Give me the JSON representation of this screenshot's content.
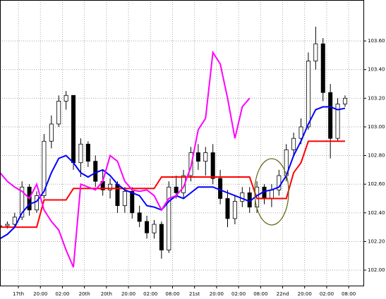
{
  "chart_data": {
    "type": "candlestick",
    "x": [
      0,
      2,
      4,
      6,
      8,
      10,
      12,
      14,
      16,
      18,
      20,
      22,
      24,
      26,
      28,
      30,
      32,
      34,
      36,
      38,
      40,
      42,
      44,
      46,
      48,
      50,
      52,
      54,
      56,
      58,
      60,
      62,
      64,
      66,
      68,
      70,
      72,
      74,
      76,
      78,
      80,
      82,
      84,
      86,
      88,
      90,
      92,
      94
    ],
    "open": [
      102.3,
      102.31,
      102.32,
      102.37,
      102.58,
      102.42,
      102.52,
      102.9,
      103.02,
      103.18,
      103.22,
      102.75,
      102.88,
      102.76,
      102.62,
      102.56,
      102.6,
      102.45,
      102.55,
      102.4,
      102.34,
      102.26,
      102.32,
      102.14,
      102.58,
      102.54,
      102.66,
      102.82,
      102.76,
      102.82,
      102.64,
      102.5,
      102.36,
      102.48,
      102.54,
      102.44,
      102.58,
      102.5,
      102.56,
      102.66,
      102.84,
      102.92,
      103.0,
      103.46,
      103.58,
      103.24,
      102.92,
      103.16
    ],
    "high": [
      102.33,
      102.34,
      102.4,
      102.62,
      102.6,
      102.55,
      102.95,
      103.08,
      103.22,
      103.25,
      103.22,
      102.92,
      102.9,
      102.8,
      102.7,
      102.64,
      102.62,
      102.58,
      102.58,
      102.45,
      102.38,
      102.35,
      102.34,
      102.62,
      102.66,
      102.7,
      102.86,
      102.88,
      102.86,
      102.88,
      102.7,
      102.56,
      102.52,
      102.58,
      102.58,
      102.62,
      102.6,
      102.6,
      102.7,
      102.88,
      102.96,
      103.06,
      103.52,
      103.7,
      103.62,
      103.3,
      103.2,
      103.22
    ],
    "low": [
      102.27,
      102.29,
      102.3,
      102.35,
      102.38,
      102.4,
      102.5,
      102.85,
      103.0,
      103.12,
      102.7,
      102.65,
      102.72,
      102.58,
      102.52,
      102.5,
      102.4,
      102.4,
      102.36,
      102.3,
      102.22,
      102.22,
      102.08,
      102.12,
      102.5,
      102.5,
      102.62,
      102.7,
      102.66,
      102.6,
      102.46,
      102.3,
      102.32,
      102.44,
      102.4,
      102.4,
      102.46,
      102.44,
      102.52,
      102.62,
      102.8,
      102.88,
      102.98,
      103.4,
      103.18,
      102.78,
      102.9,
      103.14
    ],
    "close": [
      102.31,
      102.32,
      102.37,
      102.58,
      102.42,
      102.52,
      102.9,
      103.02,
      103.18,
      103.22,
      102.75,
      102.88,
      102.76,
      102.62,
      102.56,
      102.6,
      102.45,
      102.55,
      102.4,
      102.34,
      102.26,
      102.32,
      102.14,
      102.58,
      102.54,
      102.66,
      102.82,
      102.76,
      102.82,
      102.64,
      102.5,
      102.36,
      102.48,
      102.54,
      102.44,
      102.58,
      102.5,
      102.56,
      102.66,
      102.84,
      102.92,
      103.0,
      103.46,
      103.58,
      103.24,
      102.92,
      103.16,
      103.2
    ],
    "lines": [
      {
        "color": "#ff0000",
        "values": [
          102.3,
          102.3,
          102.3,
          102.3,
          102.3,
          102.3,
          102.49,
          102.49,
          102.49,
          102.49,
          102.57,
          102.57,
          102.57,
          102.57,
          102.57,
          102.57,
          102.57,
          102.57,
          102.57,
          102.57,
          102.57,
          102.57,
          102.65,
          102.65,
          102.65,
          102.65,
          102.65,
          102.65,
          102.65,
          102.65,
          102.65,
          102.65,
          102.65,
          102.65,
          102.65,
          102.5,
          102.5,
          102.5,
          102.5,
          102.5,
          102.68,
          102.75,
          102.9,
          102.9,
          102.9,
          102.9,
          102.9,
          102.9
        ]
      },
      {
        "color": "#0000ff",
        "values": [
          102.22,
          102.25,
          102.3,
          102.4,
          102.46,
          102.48,
          102.55,
          102.68,
          102.78,
          102.8,
          102.75,
          102.68,
          102.65,
          102.68,
          102.7,
          102.66,
          102.6,
          102.56,
          102.54,
          102.52,
          102.45,
          102.44,
          102.42,
          102.48,
          102.52,
          102.5,
          102.54,
          102.58,
          102.58,
          102.58,
          102.56,
          102.54,
          102.52,
          102.5,
          102.48,
          102.52,
          102.55,
          102.56,
          102.58,
          102.66,
          102.8,
          102.9,
          103.02,
          103.12,
          103.14,
          103.14,
          103.12,
          103.13
        ]
      },
      {
        "color": "#ff00ff",
        "values": [
          102.68,
          102.62,
          102.58,
          102.55,
          102.5,
          102.6,
          102.42,
          102.34,
          102.28,
          102.14,
          102.02,
          102.6,
          102.58,
          102.56,
          102.62,
          102.8,
          102.76,
          102.62,
          102.56,
          102.55,
          102.56,
          102.52,
          102.42,
          102.5,
          102.52,
          102.58,
          102.72,
          102.98,
          103.06,
          103.52,
          103.44,
          103.2,
          102.92,
          103.14,
          103.2,
          null,
          null,
          null,
          null,
          null,
          null,
          null,
          null,
          null,
          null,
          null,
          null,
          null
        ]
      }
    ],
    "xlim": [
      0,
      99.2
    ],
    "ylim": [
      101.887,
      103.886
    ],
    "yticks": [
      {
        "value": 102.0,
        "label": "102.00"
      },
      {
        "value": 102.2,
        "label": "102.20"
      },
      {
        "value": 102.4,
        "label": "102.40"
      },
      {
        "value": 102.6,
        "label": "102.60"
      },
      {
        "value": 102.8,
        "label": "102.80"
      },
      {
        "value": 103.0,
        "label": "103.00"
      },
      {
        "value": 103.2,
        "label": "103.20"
      },
      {
        "value": 103.4,
        "label": "103.40"
      },
      {
        "value": 103.6,
        "label": "103.60"
      }
    ],
    "xticks": [
      {
        "value": 5,
        "label": "17th"
      },
      {
        "value": 11,
        "label": "20:00"
      },
      {
        "value": 17,
        "label": "02:00"
      },
      {
        "value": 23,
        "label": "20th"
      },
      {
        "value": 29,
        "label": "20th"
      },
      {
        "value": 35,
        "label": "20:00"
      },
      {
        "value": 41,
        "label": "02:00"
      },
      {
        "value": 47,
        "label": "08:00"
      },
      {
        "value": 53,
        "label": "21st"
      },
      {
        "value": 59,
        "label": "20:00"
      },
      {
        "value": 65,
        "label": "02:00"
      },
      {
        "value": 71,
        "label": "08:00"
      },
      {
        "value": 77,
        "label": "22nd"
      },
      {
        "value": 83,
        "label": "20:00"
      },
      {
        "value": 89,
        "label": "02:00"
      },
      {
        "value": 95,
        "label": "08:00"
      }
    ],
    "grid": true
  }
}
